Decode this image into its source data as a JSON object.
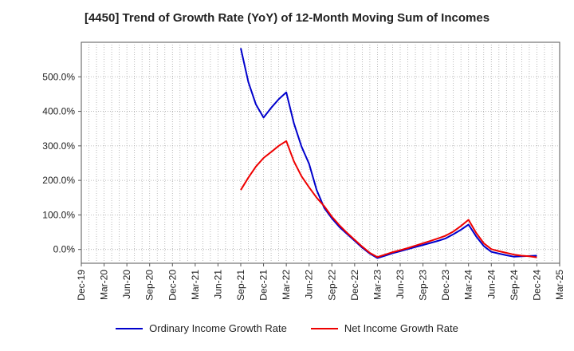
{
  "chart_data": {
    "type": "line",
    "title": "[4450]  Trend of Growth Rate (YoY) of 12-Month Moving Sum of Incomes",
    "xlabel": "",
    "ylabel": "",
    "x_ticks": [
      "Dec-19",
      "Mar-20",
      "Jun-20",
      "Sep-20",
      "Dec-20",
      "Mar-21",
      "Jun-21",
      "Sep-21",
      "Dec-21",
      "Mar-22",
      "Jun-22",
      "Sep-22",
      "Dec-22",
      "Mar-23",
      "Jun-23",
      "Sep-23",
      "Dec-23",
      "Mar-24",
      "Jun-24",
      "Sep-24",
      "Dec-24",
      "Mar-25"
    ],
    "y_ticks": [
      "0.0%",
      "100.0%",
      "200.0%",
      "300.0%",
      "400.0%",
      "500.0%"
    ],
    "y_tick_values": [
      0,
      100,
      200,
      300,
      400,
      500
    ],
    "ylim": [
      -40,
      600
    ],
    "grid": true,
    "legend_position": "bottom",
    "x": [
      "Sep-21",
      "Oct-21",
      "Nov-21",
      "Dec-21",
      "Jan-22",
      "Feb-22",
      "Mar-22",
      "Apr-22",
      "May-22",
      "Jun-22",
      "Jul-22",
      "Aug-22",
      "Sep-22",
      "Oct-22",
      "Nov-22",
      "Dec-22",
      "Jan-23",
      "Feb-23",
      "Mar-23",
      "Apr-23",
      "May-23",
      "Jun-23",
      "Jul-23",
      "Aug-23",
      "Sep-23",
      "Oct-23",
      "Nov-23",
      "Dec-23",
      "Jan-24",
      "Feb-24",
      "Mar-24",
      "Apr-24",
      "May-24",
      "Jun-24",
      "Jul-24",
      "Aug-24",
      "Sep-24",
      "Oct-24",
      "Nov-24",
      "Dec-24"
    ],
    "series": [
      {
        "name": "Ordinary Income Growth Rate",
        "color": "#0000cc",
        "values": [
          583,
          485,
          420,
          382,
          410,
          435,
          455,
          365,
          298,
          248,
          172,
          120,
          90,
          65,
          45,
          25,
          5,
          -12,
          -25,
          -18,
          -11,
          -5,
          1,
          7,
          13,
          19,
          25,
          32,
          44,
          57,
          72,
          38,
          10,
          -7,
          -12,
          -17,
          -21,
          -20,
          -19,
          -18
        ]
      },
      {
        "name": "Net Income Growth Rate",
        "color": "#ee0000",
        "values": [
          172,
          208,
          240,
          265,
          282,
          300,
          314,
          255,
          212,
          180,
          150,
          125,
          95,
          70,
          48,
          28,
          8,
          -10,
          -22,
          -15,
          -8,
          -2,
          4,
          11,
          18,
          25,
          32,
          40,
          52,
          68,
          86,
          48,
          18,
          1,
          -5,
          -10,
          -15,
          -18,
          -20,
          -23
        ]
      }
    ]
  }
}
